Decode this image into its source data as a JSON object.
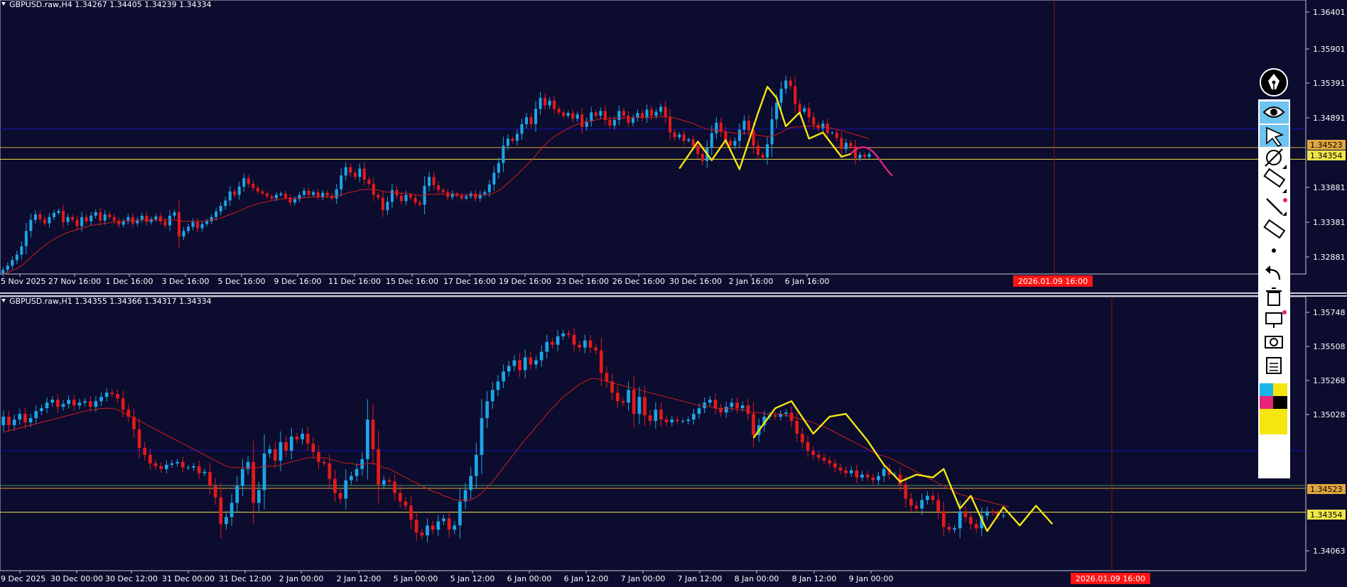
{
  "colors": {
    "background": "#0b0c2e",
    "axis_text": "#ffffff",
    "bull_candle": "#1ea5e6",
    "bear_candle": "#e41a1a",
    "moving_average": "#d21d1d",
    "zigzag": "#f5e60f",
    "projection": "#e8237a",
    "line_blue": "#1414b4",
    "line_orange": "#e0a640",
    "line_yellow": "#efe64a",
    "line_green": "#4f9a63",
    "cursor_line": "#8a1515",
    "time_badge": "#ff1414"
  },
  "panes": [
    {
      "id": "h4",
      "header": "GBPUSD.raw,H4  1.34267 1.34405 1.34239 1.34334",
      "y_ticks": [
        "1.36401",
        "1.35901",
        "1.35391",
        "1.34891",
        "1.33881",
        "1.33381",
        "1.32881"
      ],
      "price_tags": [
        {
          "label": "1.34523",
          "color": "#e0a640",
          "text_color": "#000000"
        },
        {
          "label": "1.34354",
          "color": "#efe64a",
          "text_color": "#000000"
        }
      ],
      "x_ticks": [
        "5 Nov 2025",
        "27 Nov 16:00",
        "1 Dec 16:00",
        "3 Dec 16:00",
        "5 Dec 16:00",
        "9 Dec 16:00",
        "11 Dec 16:00",
        "15 Dec 16:00",
        "17 Dec 16:00",
        "19 Dec 16:00",
        "23 Dec 16:00",
        "26 Dec 16:00",
        "30 Dec 16:00",
        "2 Jan 16:00",
        "6 Jan 16:00"
      ],
      "cursor_time": "2026.01.09 16:00"
    },
    {
      "id": "h1",
      "header": "GBPUSD.raw,H1  1.34355 1.34366 1.34317 1.34334",
      "y_ticks": [
        "1.35748",
        "1.35508",
        "1.35268",
        "1.35028",
        "1.34063"
      ],
      "price_tags": [
        {
          "label": "1.34523",
          "color": "#e0a640",
          "text_color": "#000000"
        },
        {
          "label": "1.34354",
          "color": "#efe64a",
          "text_color": "#000000"
        }
      ],
      "x_ticks": [
        "9 Dec 2025",
        "30 Dec 00:00",
        "30 Dec 12:00",
        "31 Dec 00:00",
        "31 Dec 12:00",
        "2 Jan 00:00",
        "2 Jan 12:00",
        "5 Jan 00:00",
        "5 Jan 12:00",
        "6 Jan 00:00",
        "6 Jan 12:00",
        "7 Jan 00:00",
        "7 Jan 12:00",
        "8 Jan 00:00",
        "8 Jan 12:00",
        "9 Jan 00:00"
      ],
      "cursor_time": "2026.01.09 16:00"
    }
  ],
  "toolbar": {
    "tools": [
      "pen-icon",
      "eye-icon",
      "cursor-arrow-icon",
      "magnet-icon",
      "ruler-icon",
      "trendline-icon",
      "eraser-icon",
      "dot-icon",
      "undo-icon",
      "trash-icon",
      "screen-icon",
      "camera-icon",
      "clipboard-icon",
      "color-palette-icon"
    ]
  },
  "chart_data": [
    {
      "type": "candlestick",
      "title": "GBPUSD.raw,H4",
      "ohlc_header": {
        "open": 1.34267,
        "high": 1.34405,
        "low": 1.34239,
        "close": 1.34334
      },
      "ylim": [
        1.327,
        1.3665
      ],
      "x_tick_labels": [
        "5 Nov 2025",
        "27 Nov 16:00",
        "1 Dec 16:00",
        "3 Dec 16:00",
        "5 Dec 16:00",
        "9 Dec 16:00",
        "11 Dec 16:00",
        "15 Dec 16:00",
        "17 Dec 16:00",
        "19 Dec 16:00",
        "23 Dec 16:00",
        "26 Dec 16:00",
        "30 Dec 16:00",
        "2 Jan 16:00",
        "6 Jan 16:00"
      ],
      "close": [
        1.3276,
        1.3282,
        1.329,
        1.3298,
        1.331,
        1.3332,
        1.3348,
        1.3356,
        1.3349,
        1.3343,
        1.3352,
        1.3358,
        1.3361,
        1.3345,
        1.3352,
        1.3348,
        1.3339,
        1.3352,
        1.3346,
        1.3354,
        1.3359,
        1.3347,
        1.3356,
        1.3352,
        1.3347,
        1.3341,
        1.3346,
        1.3352,
        1.3343,
        1.3348,
        1.3354,
        1.3345,
        1.3349,
        1.3353,
        1.3346,
        1.334,
        1.3354,
        1.3359,
        1.3324,
        1.3332,
        1.3338,
        1.3345,
        1.3336,
        1.3342,
        1.3346,
        1.3352,
        1.336,
        1.3368,
        1.3376,
        1.3389,
        1.3384,
        1.3396,
        1.3408,
        1.34,
        1.3394,
        1.3389,
        1.3386,
        1.3382,
        1.3379,
        1.3384,
        1.3386,
        1.338,
        1.3373,
        1.3378,
        1.3384,
        1.339,
        1.3384,
        1.3388,
        1.3381,
        1.3387,
        1.3383,
        1.3379,
        1.3392,
        1.3412,
        1.3424,
        1.3416,
        1.341,
        1.3422,
        1.3406,
        1.34,
        1.3384,
        1.338,
        1.3362,
        1.3374,
        1.3391,
        1.3383,
        1.3375,
        1.3384,
        1.338,
        1.3373,
        1.337,
        1.3397,
        1.341,
        1.3398,
        1.3391,
        1.3388,
        1.3381,
        1.3386,
        1.3383,
        1.3379,
        1.3382,
        1.3386,
        1.3379,
        1.3385,
        1.3388,
        1.3399,
        1.3416,
        1.343,
        1.3455,
        1.3465,
        1.3462,
        1.3472,
        1.3486,
        1.3496,
        1.3486,
        1.3508,
        1.3524,
        1.3513,
        1.352,
        1.3508,
        1.3503,
        1.3498,
        1.3502,
        1.3494,
        1.35,
        1.3482,
        1.349,
        1.3503,
        1.3498,
        1.3505,
        1.3492,
        1.3484,
        1.3492,
        1.3505,
        1.3498,
        1.3488,
        1.3495,
        1.3502,
        1.3495,
        1.3507,
        1.3498,
        1.3504,
        1.3511,
        1.3496,
        1.3474,
        1.3467,
        1.3471,
        1.3462,
        1.3464,
        1.3455,
        1.3443,
        1.3433,
        1.3452,
        1.3473,
        1.3488,
        1.3475,
        1.3462,
        1.3455,
        1.3462,
        1.3478,
        1.3491,
        1.3477,
        1.3455,
        1.3442,
        1.3438,
        1.3457,
        1.3493,
        1.3517,
        1.3537,
        1.3549,
        1.3541,
        1.3515,
        1.3504,
        1.3509,
        1.3496,
        1.3485,
        1.348,
        1.3487,
        1.3473,
        1.3474,
        1.3466,
        1.345,
        1.3459,
        1.3454,
        1.3437,
        1.3442,
        1.3439,
        1.3443
      ],
      "series": [
        {
          "name": "MA",
          "values": [
            1.327,
            1.3272,
            1.3275,
            1.3278,
            1.3282,
            1.3288,
            1.3294,
            1.33,
            1.3306,
            1.3311,
            1.3316,
            1.332,
            1.3324,
            1.3327,
            1.333,
            1.3332,
            1.3334,
            1.3336,
            1.3338,
            1.334,
            1.3341,
            1.3342,
            1.3343,
            1.3344,
            1.3345,
            1.3345,
            1.3346,
            1.3347,
            1.3347,
            1.3347,
            1.3348,
            1.3348,
            1.3348,
            1.3348,
            1.3348,
            1.3348,
            1.3348,
            1.3348,
            1.3347,
            1.3346,
            1.3346,
            1.3346,
            1.3346,
            1.3346,
            1.3347,
            1.3348,
            1.3349,
            1.3351,
            1.3353,
            1.3356,
            1.3358,
            1.3361,
            1.3364,
            1.3367,
            1.3369,
            1.3371,
            1.3373,
            1.3374,
            1.3376,
            1.3377,
            1.3378,
            1.3379,
            1.3379,
            1.3379,
            1.3379,
            1.338,
            1.338,
            1.3381,
            1.3381,
            1.3381,
            1.3381,
            1.3381,
            1.3382,
            1.3384,
            1.3386,
            1.3388,
            1.3389,
            1.3391,
            1.3392,
            1.3392,
            1.3392,
            1.3391,
            1.3389,
            1.3388,
            1.3388,
            1.3387,
            1.3386,
            1.3386,
            1.3385,
            1.3384,
            1.3383,
            1.3384,
            1.3385,
            1.3385,
            1.3385,
            1.3385,
            1.3385,
            1.3385,
            1.3384,
            1.3384,
            1.3384,
            1.3384,
            1.3384,
            1.3384,
            1.3384,
            1.3385,
            1.3387,
            1.339,
            1.3395,
            1.3401,
            1.3407,
            1.3413,
            1.342,
            1.3427,
            1.3433,
            1.3441,
            1.3449,
            1.3456,
            1.3463,
            1.3468,
            1.3472,
            1.3476,
            1.348,
            1.3483,
            1.3486,
            1.3487,
            1.3489,
            1.3491,
            1.3492,
            1.3494,
            1.3494,
            1.3494,
            1.3494,
            1.3495,
            1.3495,
            1.3495,
            1.3495,
            1.3496,
            1.3496,
            1.3496,
            1.3496,
            1.3496,
            1.3497,
            1.3497,
            1.3496,
            1.3495,
            1.3493,
            1.3491,
            1.3489,
            1.3487,
            1.3484,
            1.3481,
            1.3479,
            1.3478,
            1.3477,
            1.3476,
            1.3475,
            1.3474,
            1.3473,
            1.3473,
            1.3473,
            1.3473,
            1.3472,
            1.347,
            1.3469,
            1.3468,
            1.3469,
            1.3471,
            1.3474,
            1.3478,
            1.3481,
            1.3482,
            1.3482,
            1.3483,
            1.3483,
            1.3483,
            1.3483,
            1.3482,
            1.3481,
            1.348,
            1.3478,
            1.3477,
            1.3475,
            1.3473,
            1.3471,
            1.3469,
            1.3467,
            1.3465
          ]
        }
      ],
      "horizontal_lines": [
        1.3479,
        1.34523,
        1.34354
      ],
      "zigzag": [
        [
          146,
          1.3422
        ],
        [
          150,
          1.3461
        ],
        [
          153,
          1.3434
        ],
        [
          156,
          1.3463
        ],
        [
          159,
          1.3421
        ],
        [
          163,
          1.3502
        ],
        [
          165,
          1.354
        ],
        [
          167,
          1.3524
        ],
        [
          169,
          1.3483
        ],
        [
          172,
          1.3503
        ],
        [
          174,
          1.3465
        ],
        [
          177,
          1.3474
        ],
        [
          181,
          1.3439
        ],
        [
          183,
          1.3443
        ]
      ],
      "projection": [
        [
          183,
          1.3443
        ],
        [
          186,
          1.3455
        ],
        [
          189,
          1.3437
        ],
        [
          192,
          1.3413
        ]
      ]
    },
    {
      "type": "candlestick",
      "title": "GBPUSD.raw,H1",
      "ohlc_header": {
        "open": 1.34355,
        "high": 1.34366,
        "low": 1.34317,
        "close": 1.34334
      },
      "ylim": [
        1.3394,
        1.3588
      ],
      "x_tick_labels": [
        "9 Dec 2025",
        "30 Dec 00:00",
        "30 Dec 12:00",
        "31 Dec 00:00",
        "31 Dec 12:00",
        "2 Jan 00:00",
        "2 Jan 12:00",
        "5 Jan 00:00",
        "5 Jan 12:00",
        "6 Jan 00:00",
        "6 Jan 12:00",
        "7 Jan 00:00",
        "7 Jan 12:00",
        "8 Jan 00:00",
        "8 Jan 12:00",
        "9 Jan 00:00"
      ],
      "close": [
        1.3503,
        1.3497,
        1.3501,
        1.3505,
        1.3499,
        1.3502,
        1.3507,
        1.3509,
        1.3513,
        1.3515,
        1.351,
        1.3512,
        1.3515,
        1.3511,
        1.3513,
        1.3514,
        1.351,
        1.3514,
        1.3517,
        1.352,
        1.3519,
        1.3516,
        1.3508,
        1.3503,
        1.3494,
        1.3481,
        1.3476,
        1.347,
        1.3468,
        1.3466,
        1.3469,
        1.347,
        1.3471,
        1.3467,
        1.3467,
        1.3468,
        1.3463,
        1.3464,
        1.3454,
        1.3446,
        1.3427,
        1.3432,
        1.3442,
        1.3454,
        1.3466,
        1.3471,
        1.3442,
        1.3451,
        1.3477,
        1.348,
        1.3472,
        1.3485,
        1.3479,
        1.3489,
        1.3487,
        1.3491,
        1.3484,
        1.3478,
        1.3471,
        1.347,
        1.3459,
        1.3449,
        1.3445,
        1.3458,
        1.3461,
        1.3466,
        1.3473,
        1.3501,
        1.348,
        1.3455,
        1.3458,
        1.3457,
        1.3449,
        1.3443,
        1.344,
        1.343,
        1.3421,
        1.3419,
        1.3426,
        1.3423,
        1.3429,
        1.3431,
        1.3423,
        1.3426,
        1.3443,
        1.3451,
        1.3461,
        1.3476,
        1.3502,
        1.3514,
        1.3522,
        1.3528,
        1.3535,
        1.3539,
        1.3543,
        1.3536,
        1.3545,
        1.354,
        1.3543,
        1.3549,
        1.3556,
        1.3554,
        1.356,
        1.3562,
        1.3561,
        1.3554,
        1.3552,
        1.3557,
        1.3552,
        1.355,
        1.3534,
        1.3528,
        1.352,
        1.3514,
        1.3513,
        1.3522,
        1.3505,
        1.3517,
        1.3504,
        1.35,
        1.3508,
        1.3501,
        1.3499,
        1.3501,
        1.35,
        1.35,
        1.3501,
        1.3505,
        1.3509,
        1.3513,
        1.3515,
        1.3509,
        1.3506,
        1.351,
        1.3513,
        1.3509,
        1.3511,
        1.3505,
        1.349,
        1.3497,
        1.3503,
        1.3504,
        1.3503,
        1.3505,
        1.3506,
        1.35,
        1.3491,
        1.3485,
        1.3479,
        1.3476,
        1.3474,
        1.3472,
        1.347,
        1.3467,
        1.3465,
        1.3463,
        1.3465,
        1.346,
        1.3462,
        1.346,
        1.3458,
        1.3461,
        1.3466,
        1.3462,
        1.3462,
        1.3455,
        1.3445,
        1.344,
        1.3438,
        1.3444,
        1.3447,
        1.3444,
        1.3436,
        1.3425,
        1.3423,
        1.3424,
        1.3436,
        1.3432,
        1.3427,
        1.3424,
        1.3433,
        1.3436,
        1.3435,
        1.3433,
        1.3433
      ],
      "series": [
        {
          "name": "MA",
          "values": [
            1.3492,
            1.3493,
            1.3494,
            1.3495,
            1.3496,
            1.3497,
            1.3498,
            1.3499,
            1.35,
            1.3501,
            1.3502,
            1.3503,
            1.3504,
            1.3505,
            1.3506,
            1.3507,
            1.3508,
            1.3508,
            1.3509,
            1.3509,
            1.3509,
            1.3508,
            1.3506,
            1.3504,
            1.3502,
            1.35,
            1.3498,
            1.3496,
            1.3494,
            1.3492,
            1.349,
            1.3488,
            1.3486,
            1.3484,
            1.3482,
            1.348,
            1.3478,
            1.3476,
            1.3474,
            1.3472,
            1.347,
            1.3468,
            1.3467,
            1.3467,
            1.3467,
            1.3467,
            1.3467,
            1.3467,
            1.3468,
            1.3468,
            1.3468,
            1.3469,
            1.347,
            1.3471,
            1.3472,
            1.3473,
            1.3474,
            1.3474,
            1.3474,
            1.3474,
            1.3473,
            1.3472,
            1.3471,
            1.347,
            1.347,
            1.3469,
            1.3469,
            1.347,
            1.347,
            1.3469,
            1.3467,
            1.3466,
            1.3464,
            1.3462,
            1.346,
            1.3458,
            1.3456,
            1.3454,
            1.3452,
            1.345,
            1.3449,
            1.3447,
            1.3446,
            1.3444,
            1.3444,
            1.3444,
            1.3444,
            1.3446,
            1.3449,
            1.3453,
            1.3457,
            1.3462,
            1.3467,
            1.3472,
            1.3477,
            1.3482,
            1.3487,
            1.3491,
            1.3496,
            1.35,
            1.3505,
            1.3509,
            1.3513,
            1.3517,
            1.352,
            1.3523,
            1.3526,
            1.3528,
            1.353,
            1.353,
            1.3529,
            1.3528,
            1.3527,
            1.3526,
            1.3525,
            1.3524,
            1.3523,
            1.3522,
            1.3521,
            1.352,
            1.3519,
            1.3518,
            1.3517,
            1.3516,
            1.3515,
            1.3514,
            1.3513,
            1.3512,
            1.3511,
            1.3511,
            1.351,
            1.3509,
            1.3509,
            1.3509,
            1.3509,
            1.3508,
            1.3508,
            1.3507,
            1.3506,
            1.3506,
            1.3505,
            1.3505,
            1.3505,
            1.3505,
            1.3504,
            1.3503,
            1.3502,
            1.3501,
            1.35,
            1.3499,
            1.3497,
            1.3496,
            1.3494,
            1.3492,
            1.349,
            1.3488,
            1.3486,
            1.3484,
            1.3482,
            1.348,
            1.3478,
            1.3476,
            1.3475,
            1.3474,
            1.3472,
            1.347,
            1.3468,
            1.3466,
            1.3464,
            1.3462,
            1.346,
            1.3458,
            1.3456,
            1.3454,
            1.3452,
            1.345,
            1.3448,
            1.3447,
            1.3446,
            1.3445,
            1.3444,
            1.3443,
            1.3442,
            1.3441,
            1.344,
            1.3439
          ]
        }
      ],
      "horizontal_lines": [
        1.3479,
        1.34543,
        1.34523,
        1.34354
      ],
      "zigzag": [
        [
          138,
          1.3488
        ],
        [
          142,
          1.3509
        ],
        [
          145,
          1.3514
        ],
        [
          149,
          1.3491
        ],
        [
          152,
          1.3503
        ],
        [
          155,
          1.3505
        ],
        [
          159,
          1.3486
        ],
        [
          162,
          1.3469
        ],
        [
          165,
          1.3457
        ],
        [
          168,
          1.3462
        ],
        [
          171,
          1.346
        ],
        [
          173,
          1.3466
        ],
        [
          176,
          1.3438
        ],
        [
          178,
          1.3447
        ],
        [
          181,
          1.3422
        ],
        [
          184,
          1.3439
        ],
        [
          187,
          1.3426
        ],
        [
          190,
          1.344
        ],
        [
          193,
          1.3427
        ]
      ]
    }
  ]
}
